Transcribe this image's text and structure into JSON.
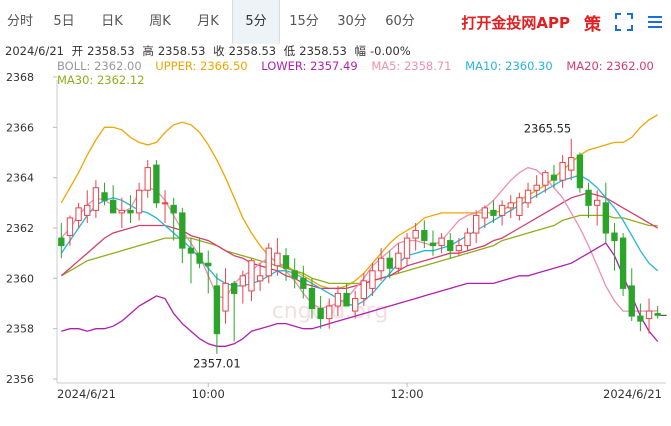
{
  "tabs": [
    {
      "label": "分时",
      "w": 40
    },
    {
      "label": "5日",
      "w": 48
    },
    {
      "label": "日K",
      "w": 48
    },
    {
      "label": "周K",
      "w": 48
    },
    {
      "label": "月K",
      "w": 48
    },
    {
      "label": "5分",
      "w": 48,
      "active": true
    },
    {
      "label": "15分",
      "w": 48
    },
    {
      "label": "30分",
      "w": 48
    },
    {
      "label": "60分",
      "w": 48
    }
  ],
  "app_link": "打开金投网APP",
  "strategy_label": "策",
  "quote": {
    "date": "2024/6/21",
    "open_label": "开",
    "open": "2358.53",
    "high_label": "高",
    "high": "2358.53",
    "close_label": "收",
    "close": "2358.53",
    "low_label": "低",
    "low": "2358.53",
    "amp_label": "幅",
    "amp": "-0.00%"
  },
  "indicators": {
    "boll": "BOLL: 2362.00",
    "upper": "UPPER: 2366.50",
    "lower": "LOWER: 2357.49",
    "ma5": "MA5: 2358.71",
    "ma10": "MA10: 2360.30",
    "ma20": "MA20: 2362.00",
    "ma30": "MA30: 2362.12"
  },
  "colors": {
    "up": "#e8434b",
    "down": "#2aa52a",
    "boll": "#999999",
    "upper": "#f0a500",
    "lower": "#b020b0",
    "ma5": "#f08fb0",
    "ma10": "#26b6d6",
    "ma20": "#d63c6e",
    "ma30": "#8fae1b"
  },
  "watermark": "cngold.org",
  "chart_data": {
    "type": "candlestick",
    "ylim": [
      2356,
      2368
    ],
    "y_ticks": [
      2356,
      2358,
      2360,
      2362,
      2364,
      2366,
      2368
    ],
    "x_ticks": [
      "2024/6/21",
      "10:00",
      "12:00",
      "2024/6/21"
    ],
    "annotations": [
      {
        "label": "2365.55",
        "value": 2365.55,
        "kind": "high"
      },
      {
        "label": "2357.01",
        "value": 2357.01,
        "kind": "low"
      }
    ],
    "candles": [
      [
        2361.6,
        2362.2,
        2360.8,
        2361.3
      ],
      [
        2361.7,
        2362.5,
        2361.3,
        2362.4
      ],
      [
        2362.3,
        2363.0,
        2362.0,
        2362.8
      ],
      [
        2362.5,
        2363.5,
        2362.2,
        2362.9
      ],
      [
        2362.7,
        2363.9,
        2362.4,
        2363.6
      ],
      [
        2363.4,
        2363.8,
        2362.9,
        2363.1
      ],
      [
        2363.1,
        2363.7,
        2362.7,
        2362.6
      ],
      [
        2362.6,
        2363.2,
        2362.0,
        2362.7
      ],
      [
        2362.7,
        2363.3,
        2362.2,
        2362.6
      ],
      [
        2362.6,
        2363.8,
        2362.3,
        2363.5
      ],
      [
        2363.5,
        2364.7,
        2363.2,
        2364.4
      ],
      [
        2364.5,
        2364.7,
        2362.8,
        2363.0
      ],
      [
        2363.0,
        2363.5,
        2362.2,
        2363.0
      ],
      [
        2362.9,
        2363.2,
        2361.5,
        2362.6
      ],
      [
        2362.6,
        2362.8,
        2360.6,
        2361.2
      ],
      [
        2361.2,
        2361.6,
        2359.8,
        2361.0
      ],
      [
        2361.0,
        2361.6,
        2360.4,
        2360.6
      ],
      [
        2360.6,
        2361.1,
        2359.4,
        2360.5
      ],
      [
        2359.7,
        2360.2,
        2357.0,
        2357.8
      ],
      [
        2358.7,
        2360.4,
        2358.2,
        2359.8
      ],
      [
        2359.8,
        2359.9,
        2357.5,
        2359.4
      ],
      [
        2359.7,
        2360.3,
        2359.0,
        2360.1
      ],
      [
        2359.5,
        2360.8,
        2359.1,
        2360.7
      ],
      [
        2359.9,
        2360.6,
        2359.5,
        2360.1
      ],
      [
        2360.1,
        2361.4,
        2359.8,
        2361.2
      ],
      [
        2360.5,
        2361.6,
        2360.1,
        2361.0
      ],
      [
        2360.9,
        2361.2,
        2359.9,
        2360.4
      ],
      [
        2360.3,
        2360.8,
        2359.6,
        2360.0
      ],
      [
        2360.0,
        2360.5,
        2359.2,
        2359.6
      ],
      [
        2359.6,
        2360.0,
        2358.4,
        2358.8
      ],
      [
        2358.8,
        2359.3,
        2358.0,
        2358.4
      ],
      [
        2358.4,
        2359.2,
        2358.0,
        2358.9
      ],
      [
        2358.9,
        2359.7,
        2358.5,
        2359.4
      ],
      [
        2359.4,
        2359.8,
        2358.9,
        2358.9
      ],
      [
        2358.7,
        2359.5,
        2358.4,
        2359.2
      ],
      [
        2359.2,
        2360.2,
        2358.9,
        2359.9
      ],
      [
        2359.6,
        2360.6,
        2359.3,
        2360.3
      ],
      [
        2360.3,
        2361.2,
        2359.9,
        2360.8
      ],
      [
        2360.8,
        2361.1,
        2360.0,
        2360.4
      ],
      [
        2360.4,
        2361.4,
        2360.2,
        2361.0
      ],
      [
        2360.8,
        2361.8,
        2360.5,
        2361.6
      ],
      [
        2361.6,
        2362.2,
        2361.1,
        2361.9
      ],
      [
        2361.9,
        2362.3,
        2361.2,
        2361.5
      ],
      [
        2361.4,
        2361.9,
        2360.9,
        2361.3
      ],
      [
        2361.3,
        2361.8,
        2361.0,
        2361.6
      ],
      [
        2361.5,
        2361.8,
        2360.8,
        2361.1
      ],
      [
        2361.1,
        2361.6,
        2360.9,
        2361.3
      ],
      [
        2361.3,
        2362.0,
        2361.1,
        2361.8
      ],
      [
        2361.8,
        2362.7,
        2361.4,
        2362.5
      ],
      [
        2362.4,
        2362.9,
        2362.0,
        2362.8
      ],
      [
        2362.7,
        2363.1,
        2362.2,
        2362.5
      ],
      [
        2362.5,
        2363.1,
        2362.1,
        2362.9
      ],
      [
        2362.8,
        2363.3,
        2362.4,
        2363.0
      ],
      [
        2362.5,
        2363.4,
        2362.3,
        2363.2
      ],
      [
        2363.0,
        2363.8,
        2362.8,
        2363.5
      ],
      [
        2363.5,
        2364.1,
        2363.2,
        2363.7
      ],
      [
        2363.7,
        2364.3,
        2363.4,
        2364.2
      ],
      [
        2364.1,
        2364.5,
        2363.6,
        2363.9
      ],
      [
        2363.9,
        2364.9,
        2363.6,
        2364.6
      ],
      [
        2364.3,
        2365.55,
        2363.9,
        2364.8
      ],
      [
        2364.9,
        2365.0,
        2363.4,
        2363.6
      ],
      [
        2363.5,
        2363.8,
        2362.4,
        2362.9
      ],
      [
        2362.9,
        2363.5,
        2362.1,
        2363.1
      ],
      [
        2363.0,
        2363.8,
        2361.4,
        2361.8
      ],
      [
        2361.8,
        2362.2,
        2360.3,
        2361.5
      ],
      [
        2361.6,
        2361.8,
        2359.3,
        2359.6
      ],
      [
        2359.7,
        2360.4,
        2358.3,
        2358.5
      ],
      [
        2358.5,
        2359.0,
        2357.9,
        2358.3
      ],
      [
        2358.4,
        2359.2,
        2357.8,
        2358.7
      ],
      [
        2358.6,
        2358.9,
        2358.4,
        2358.53
      ]
    ],
    "series": [
      {
        "name": "UPPER",
        "values": [
          2363.0,
          2363.6,
          2364.2,
          2364.9,
          2365.5,
          2366.0,
          2366.0,
          2365.9,
          2365.6,
          2365.4,
          2365.3,
          2365.4,
          2365.8,
          2366.1,
          2366.2,
          2366.1,
          2365.8,
          2365.3,
          2364.7,
          2364.0,
          2363.2,
          2362.4,
          2361.8,
          2361.3,
          2360.9,
          2360.6,
          2360.5,
          2360.3,
          2360.1,
          2359.9,
          2359.7,
          2359.6,
          2359.6,
          2359.7,
          2359.9,
          2360.2,
          2360.6,
          2361.0,
          2361.4,
          2361.7,
          2361.9,
          2362.1,
          2362.4,
          2362.5,
          2362.6,
          2362.6,
          2362.6,
          2362.6,
          2362.6,
          2362.6,
          2362.6,
          2362.7,
          2362.9,
          2363.1,
          2363.3,
          2363.5,
          2363.7,
          2364.0,
          2364.3,
          2364.6,
          2364.9,
          2365.1,
          2365.2,
          2365.3,
          2365.4,
          2365.4,
          2365.6,
          2366.0,
          2366.3,
          2366.5
        ]
      },
      {
        "name": "MA30",
        "values": [
          2360.1,
          2360.3,
          2360.5,
          2360.7,
          2360.8,
          2360.9,
          2361.0,
          2361.1,
          2361.2,
          2361.3,
          2361.4,
          2361.5,
          2361.6,
          2361.6,
          2361.6,
          2361.6,
          2361.5,
          2361.4,
          2361.3,
          2361.1,
          2361.0,
          2360.9,
          2360.8,
          2360.7,
          2360.6,
          2360.5,
          2360.4,
          2360.3,
          2360.2,
          2360.0,
          2359.9,
          2359.8,
          2359.8,
          2359.8,
          2359.8,
          2359.8,
          2359.9,
          2360.0,
          2360.1,
          2360.2,
          2360.3,
          2360.4,
          2360.5,
          2360.6,
          2360.7,
          2360.8,
          2360.9,
          2361.0,
          2361.1,
          2361.2,
          2361.3,
          2361.5,
          2361.6,
          2361.7,
          2361.8,
          2361.9,
          2362.0,
          2362.1,
          2362.3,
          2362.4,
          2362.5,
          2362.5,
          2362.5,
          2362.5,
          2362.4,
          2362.4,
          2362.3,
          2362.2,
          2362.1,
          2362.1
        ]
      },
      {
        "name": "MA20",
        "values": [
          2360.1,
          2360.4,
          2360.7,
          2361.0,
          2361.3,
          2361.6,
          2361.8,
          2361.9,
          2362.0,
          2362.1,
          2362.1,
          2362.1,
          2362.1,
          2362.0,
          2361.9,
          2361.7,
          2361.6,
          2361.5,
          2361.3,
          2361.1,
          2360.9,
          2360.8,
          2360.6,
          2360.5,
          2360.4,
          2360.3,
          2360.1,
          2360.0,
          2359.8,
          2359.7,
          2359.6,
          2359.6,
          2359.6,
          2359.6,
          2359.7,
          2359.8,
          2359.9,
          2360.0,
          2360.1,
          2360.3,
          2360.5,
          2360.6,
          2360.7,
          2360.8,
          2360.9,
          2361.0,
          2361.0,
          2361.1,
          2361.2,
          2361.3,
          2361.5,
          2361.6,
          2361.8,
          2362.0,
          2362.2,
          2362.4,
          2362.6,
          2362.8,
          2363.0,
          2363.2,
          2363.3,
          2363.4,
          2363.3,
          2363.2,
          2363.0,
          2362.8,
          2362.6,
          2362.4,
          2362.2,
          2362.0
        ]
      },
      {
        "name": "MA10",
        "values": [
          2361.0,
          2361.5,
          2362.0,
          2362.5,
          2362.9,
          2363.1,
          2363.2,
          2363.1,
          2362.9,
          2362.7,
          2362.6,
          2362.4,
          2362.1,
          2361.8,
          2361.5,
          2361.2,
          2360.8,
          2360.4,
          2360.0,
          2359.8,
          2359.7,
          2359.7,
          2359.8,
          2359.9,
          2360.1,
          2360.3,
          2360.3,
          2360.2,
          2360.0,
          2359.8,
          2359.6,
          2359.4,
          2359.2,
          2359.0,
          2358.9,
          2359.1,
          2359.4,
          2359.8,
          2360.2,
          2360.6,
          2360.9,
          2361.0,
          2361.1,
          2361.1,
          2361.2,
          2361.3,
          2361.5,
          2361.7,
          2361.9,
          2362.1,
          2362.3,
          2362.5,
          2362.7,
          2362.9,
          2363.1,
          2363.3,
          2363.5,
          2363.7,
          2363.9,
          2364.0,
          2364.1,
          2363.9,
          2363.6,
          2363.2,
          2362.8,
          2362.3,
          2361.7,
          2361.1,
          2360.6,
          2360.3
        ]
      },
      {
        "name": "MA5",
        "values": [
          2361.6,
          2362.0,
          2362.5,
          2362.9,
          2363.2,
          2363.1,
          2362.9,
          2362.6,
          2362.8,
          2363.4,
          2363.6,
          2363.5,
          2363.1,
          2362.5,
          2361.9,
          2361.4,
          2360.9,
          2360.1,
          2359.3,
          2359.2,
          2359.8,
          2360.1,
          2360.3,
          2360.6,
          2360.8,
          2360.7,
          2360.3,
          2359.9,
          2359.4,
          2359.0,
          2358.8,
          2358.9,
          2359.0,
          2359.2,
          2359.6,
          2360.0,
          2360.5,
          2360.8,
          2361.1,
          2361.4,
          2361.5,
          2361.5,
          2361.4,
          2361.3,
          2361.5,
          2361.9,
          2362.3,
          2362.5,
          2362.6,
          2362.8,
          2363.1,
          2363.5,
          2363.9,
          2364.2,
          2364.4,
          2364.3,
          2364.0,
          2363.6,
          2363.2,
          2362.6,
          2362.0,
          2361.3,
          2360.5,
          2359.7,
          2359.1,
          2358.7,
          2358.7,
          2358.7,
          2358.7,
          2358.71
        ]
      },
      {
        "name": "BOLL",
        "values": [
          2360.5,
          2360.8,
          2361.1,
          2361.4,
          2361.7,
          2361.9,
          2362.0,
          2362.1,
          2362.1,
          2362.1,
          2362.1,
          2362.1,
          2362.0,
          2361.8,
          2361.7,
          2361.5,
          2361.4,
          2361.2,
          2361.0,
          2360.8,
          2360.7,
          2360.5,
          2360.4,
          2360.3,
          2360.2,
          2360.1,
          2360.0,
          2359.9,
          2359.8,
          2359.7,
          2359.6,
          2359.6,
          2359.6,
          2359.6,
          2359.7,
          2359.8,
          2359.9,
          2360.0,
          2360.1,
          2360.3,
          2360.4,
          2360.5,
          2360.7,
          2360.8,
          2360.9,
          2361.0,
          2361.0,
          2361.1,
          2361.2,
          2361.3,
          2361.5,
          2361.6,
          2361.8,
          2362.0,
          2362.2,
          2362.4,
          2362.6,
          2362.8,
          2362.9,
          2363.1,
          2363.2,
          2363.3,
          2363.2,
          2363.0,
          2362.8,
          2362.6,
          2362.4,
          2362.2,
          2362.1,
          2362.0
        ]
      },
      {
        "name": "LOWER",
        "values": [
          2357.9,
          2358.0,
          2358.0,
          2357.9,
          2358.0,
          2358.0,
          2358.1,
          2358.3,
          2358.6,
          2358.9,
          2359.1,
          2359.3,
          2359.2,
          2358.6,
          2358.2,
          2357.9,
          2357.6,
          2357.4,
          2357.3,
          2357.3,
          2357.4,
          2357.6,
          2357.9,
          2358.0,
          2358.1,
          2358.2,
          2358.2,
          2358.1,
          2358.0,
          2358.0,
          2358.1,
          2358.2,
          2358.3,
          2358.4,
          2358.5,
          2358.6,
          2358.7,
          2358.8,
          2358.9,
          2359.0,
          2359.1,
          2359.2,
          2359.3,
          2359.4,
          2359.5,
          2359.6,
          2359.7,
          2359.8,
          2359.8,
          2359.8,
          2359.8,
          2359.9,
          2360.0,
          2360.1,
          2360.1,
          2360.2,
          2360.3,
          2360.4,
          2360.5,
          2360.6,
          2360.8,
          2361.0,
          2361.2,
          2361.4,
          2360.9,
          2360.1,
          2359.3,
          2358.5,
          2357.9,
          2357.49
        ]
      }
    ]
  }
}
